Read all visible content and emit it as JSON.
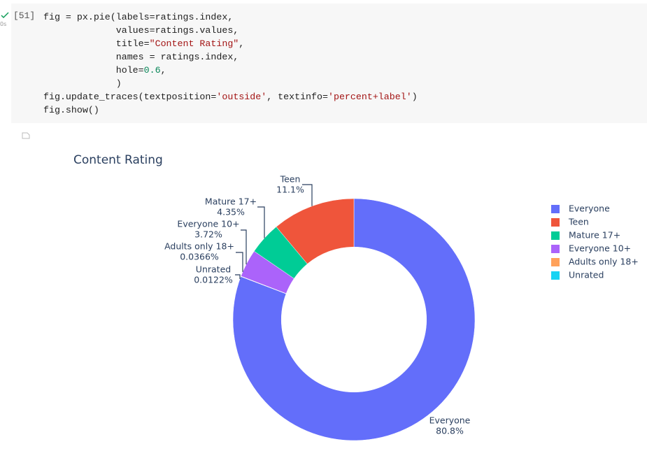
{
  "cell": {
    "prompt": "[51]",
    "time": "0s",
    "code": [
      "fig = px.pie(labels=ratings.index,",
      "             values=ratings.values,",
      "             title=\"Content Rating\",",
      "             names = ratings.index,",
      "             hole=0.6,",
      "             )",
      "fig.update_traces(textposition='outside', textinfo='percent+label')",
      "fig.show()"
    ]
  },
  "chart_data": {
    "type": "pie",
    "title": "Content Rating",
    "hole": 0.6,
    "categories": [
      "Everyone",
      "Teen",
      "Mature 17+",
      "Everyone 10+",
      "Adults only 18+",
      "Unrated"
    ],
    "values": [
      80.8,
      11.1,
      4.35,
      3.72,
      0.0366,
      0.0122
    ],
    "value_labels": [
      "80.8%",
      "11.1%",
      "4.35%",
      "3.72%",
      "0.0366%",
      "0.0122%"
    ],
    "colors": [
      "#636efa",
      "#ef553b",
      "#00cc96",
      "#ab63fa",
      "#ffa15a",
      "#19d3f3"
    ],
    "legend": "right"
  }
}
